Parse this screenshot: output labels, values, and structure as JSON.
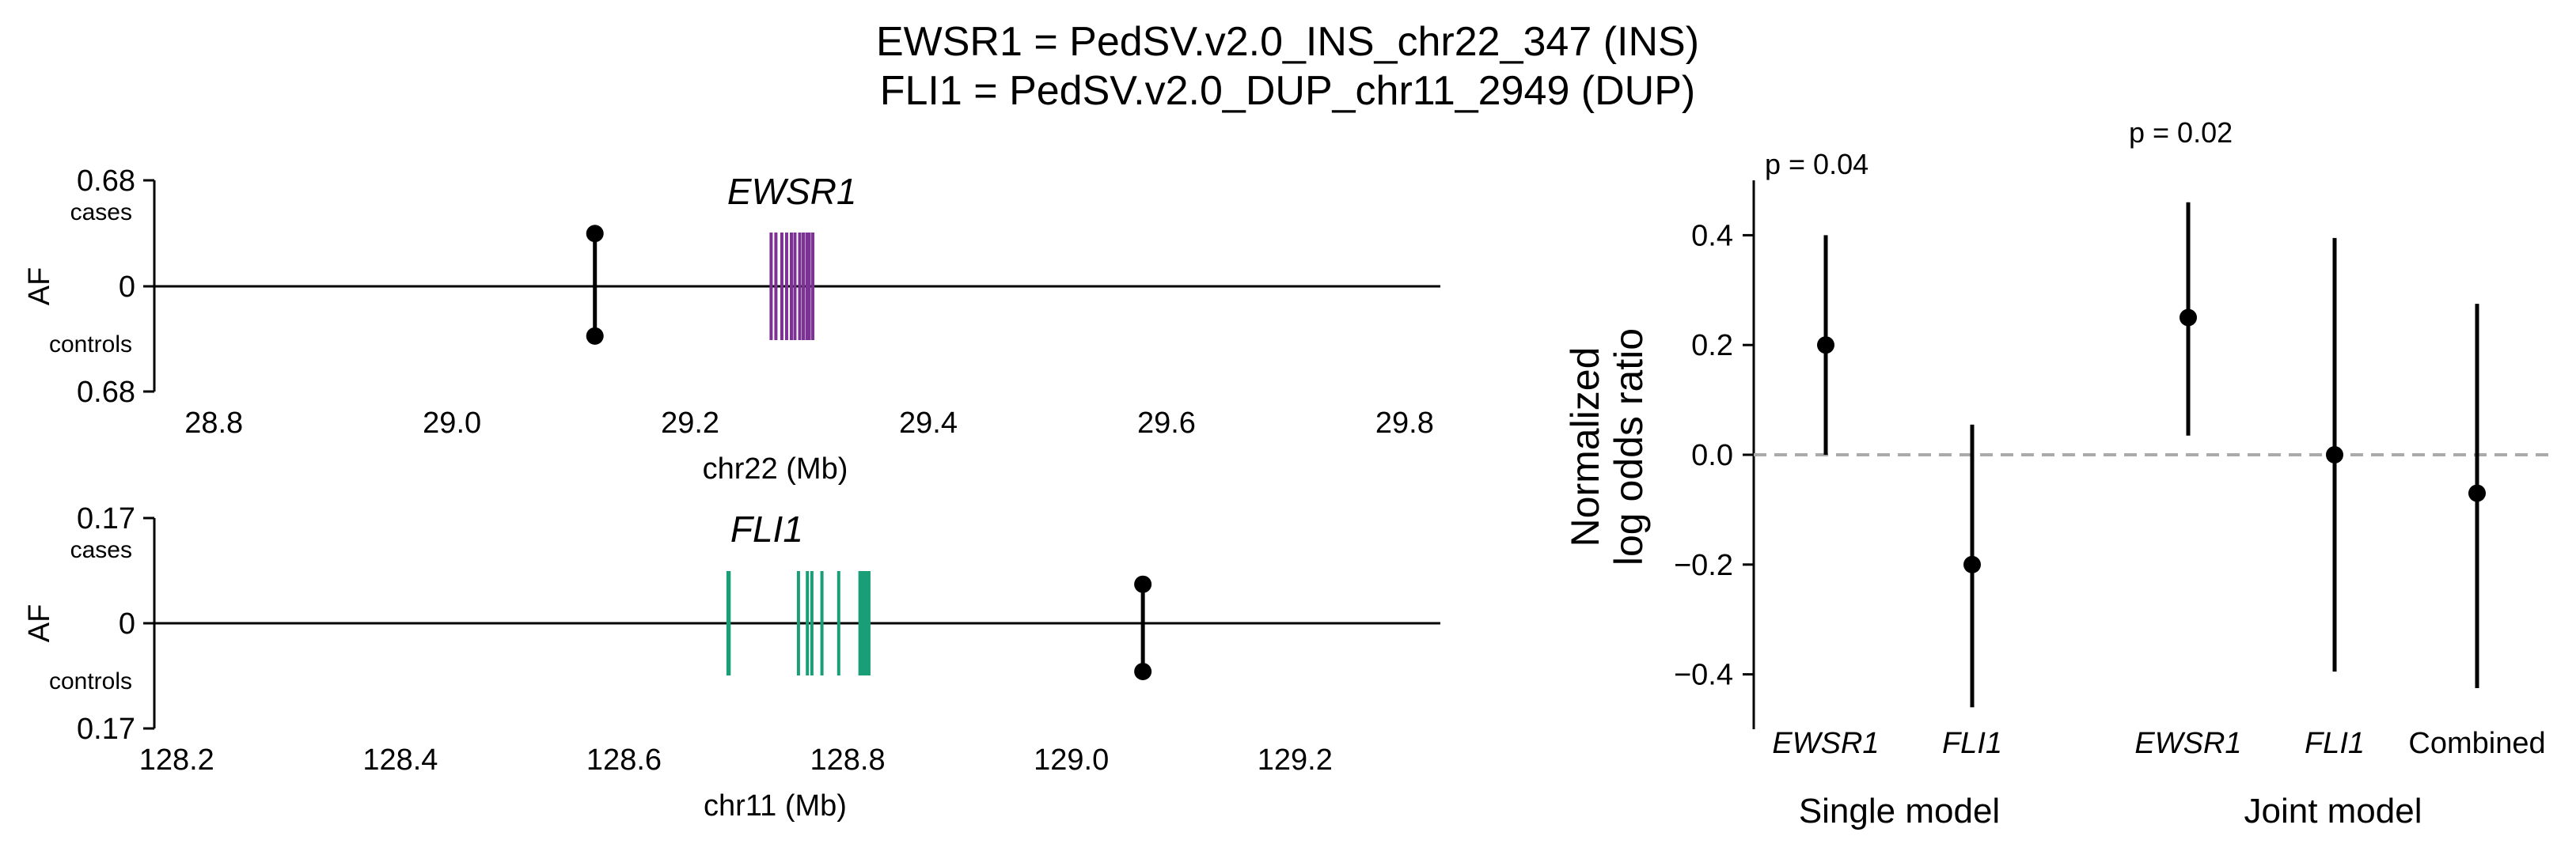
{
  "title_lines": [
    "EWSR1 = PedSV.v2.0_INS_chr22_347 (INS)",
    "FLI1 = PedSV.v2.0_DUP_chr11_2949 (DUP)"
  ],
  "chart_data": [
    {
      "type": "scatter",
      "panel": "EWSR1 locus",
      "gene_label": "EWSR1",
      "xlabel": "chr22 (Mb)",
      "ylabel": "AF",
      "xlim": [
        28.75,
        29.83
      ],
      "x_ticks": [
        "28.8",
        "29.0",
        "29.2",
        "29.4",
        "29.6",
        "29.8"
      ],
      "y_top_label": "0.68",
      "y_zero_label": "0",
      "y_bottom_label": "0.68",
      "cases_label": "cases",
      "controls_label": "controls",
      "af_max": 0.68,
      "sv": {
        "x": 29.12,
        "af_cases": 0.34,
        "af_controls": 0.32
      },
      "gene_color": "#7b3294",
      "exons": [
        29.268,
        29.272,
        29.277,
        29.281,
        29.285,
        29.288,
        29.292,
        29.295,
        29.298,
        29.3,
        29.303
      ]
    },
    {
      "type": "scatter",
      "panel": "FLI1 locus",
      "gene_label": "FLI1",
      "xlabel": "chr11 (Mb)",
      "ylabel": "AF",
      "xlim": [
        128.18,
        129.33
      ],
      "x_ticks": [
        "128.2",
        "128.4",
        "128.6",
        "128.8",
        "129.0",
        "129.2"
      ],
      "y_top_label": "0.17",
      "y_zero_label": "0",
      "y_bottom_label": "0.17",
      "cases_label": "cases",
      "controls_label": "controls",
      "af_max": 0.17,
      "sv": {
        "x": 129.064,
        "af_cases": 0.063,
        "af_controls": 0.078
      },
      "gene_color": "#1a9e77",
      "exons": [
        128.693,
        128.694,
        128.756,
        128.764,
        128.768,
        128.777,
        128.792,
        128.811,
        128.813,
        128.815,
        128.817,
        128.819
      ]
    },
    {
      "type": "scatter",
      "panel": "Effect sizes",
      "ylabel_lines": [
        "Normalized",
        "log odds ratio"
      ],
      "ylim": [
        -0.5,
        0.5
      ],
      "y_ticks": [
        {
          "value": 0.4,
          "label": "0.4"
        },
        {
          "value": 0.2,
          "label": "0.2"
        },
        {
          "value": 0.0,
          "label": "0.0"
        },
        {
          "value": -0.2,
          "label": "−0.2"
        },
        {
          "value": -0.4,
          "label": "−0.4"
        }
      ],
      "reference_line": 0.0,
      "groups": [
        {
          "label": "Single model",
          "pvalue": "p = 0.04"
        },
        {
          "label": "Joint model",
          "pvalue": "p = 0.02"
        }
      ],
      "points": [
        {
          "category": "EWSR1",
          "italic": true,
          "group": 0,
          "estimate": 0.2,
          "lower": 0.0,
          "upper": 0.4
        },
        {
          "category": "FLI1",
          "italic": true,
          "group": 0,
          "estimate": -0.2,
          "lower": -0.46,
          "upper": 0.055
        },
        {
          "category": "EWSR1",
          "italic": true,
          "group": 1,
          "estimate": 0.25,
          "lower": 0.035,
          "upper": 0.46
        },
        {
          "category": "FLI1",
          "italic": true,
          "group": 1,
          "estimate": 0.0,
          "lower": -0.395,
          "upper": 0.395
        },
        {
          "category": "Combined",
          "italic": false,
          "group": 1,
          "estimate": -0.07,
          "lower": -0.425,
          "upper": 0.275
        }
      ],
      "ref_line_color": "#aaaaaa"
    }
  ]
}
